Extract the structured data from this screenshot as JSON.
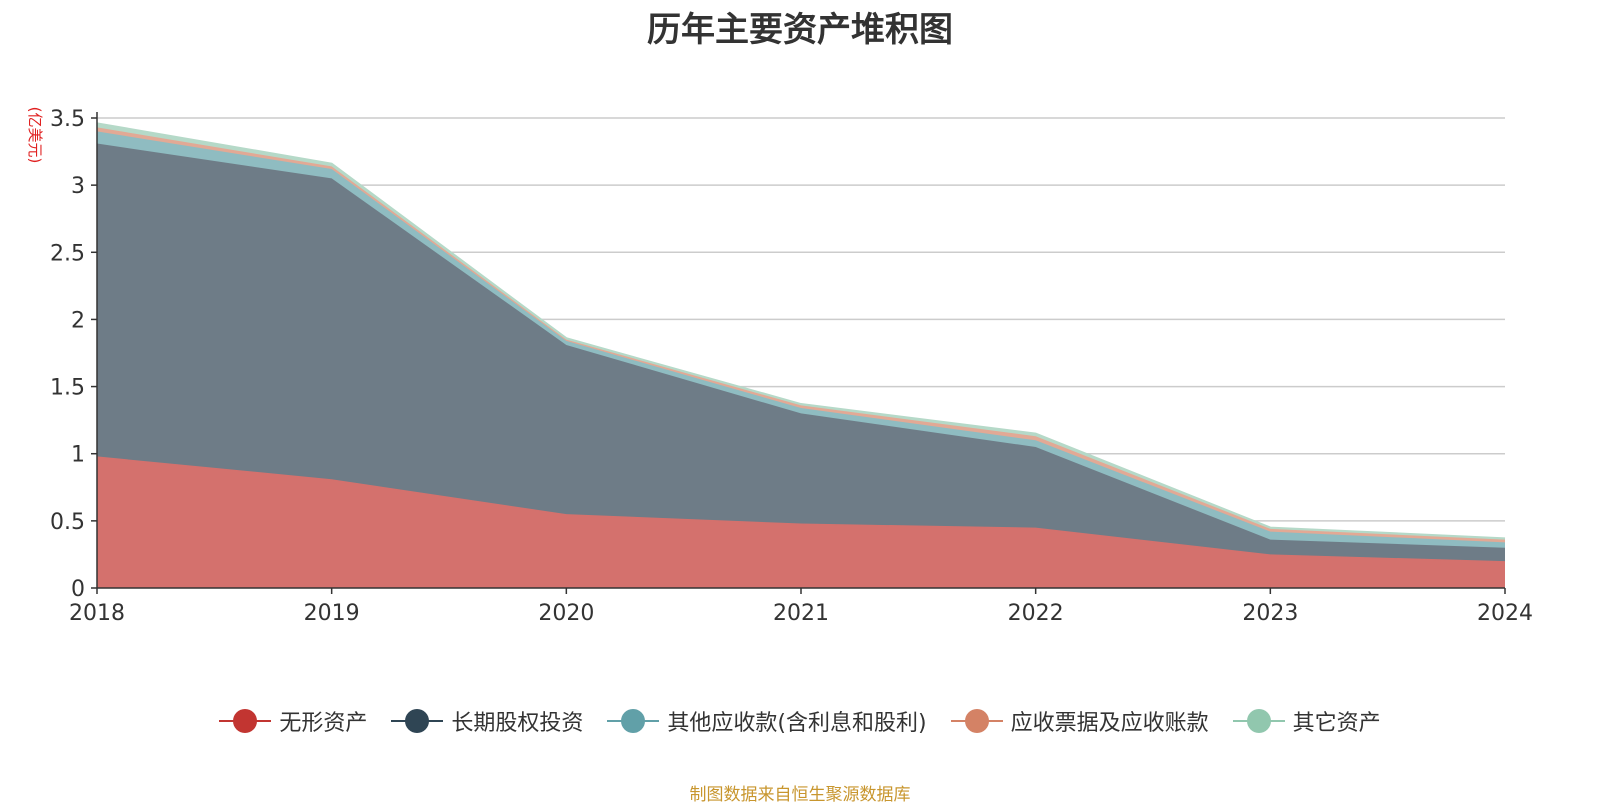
{
  "chart_data": {
    "type": "area",
    "stacked": true,
    "title": "历年主要资产堆积图",
    "unit_label": "(亿美元)",
    "x": [
      "2018",
      "2019",
      "2020",
      "2021",
      "2022",
      "2023",
      "2024"
    ],
    "yticks": [
      "0",
      "0.5",
      "1",
      "1.5",
      "2",
      "2.5",
      "3",
      "3.5"
    ],
    "ylim": [
      0,
      3.5
    ],
    "grid": true,
    "legend_position": "bottom",
    "series": [
      {
        "name": "无形资产",
        "color": "#c23531",
        "fill": "#d4716d",
        "values": [
          0.98,
          0.81,
          0.55,
          0.48,
          0.45,
          0.25,
          0.2
        ]
      },
      {
        "name": "长期股权投资",
        "color": "#2f4554",
        "fill": "#6e7c87",
        "values": [
          2.33,
          2.24,
          1.26,
          0.82,
          0.6,
          0.11,
          0.1
        ]
      },
      {
        "name": "其他应收款(含利息和股利)",
        "color": "#61a0a8",
        "fill": "#8fbcc1",
        "values": [
          0.09,
          0.07,
          0.03,
          0.04,
          0.05,
          0.06,
          0.04
        ]
      },
      {
        "name": "应收票据及应收账款",
        "color": "#d48265",
        "fill": "#e2a995",
        "values": [
          0.03,
          0.02,
          0.01,
          0.02,
          0.03,
          0.02,
          0.02
        ]
      },
      {
        "name": "其它资产",
        "color": "#91c7ae",
        "fill": "#b5d9c8",
        "values": [
          0.03,
          0.02,
          0.01,
          0.01,
          0.02,
          0.01,
          0.01
        ]
      }
    ],
    "source_note": "制图数据来自恒生聚源数据库"
  }
}
